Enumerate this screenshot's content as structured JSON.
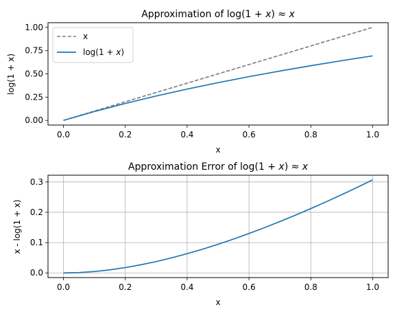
{
  "chart_data": [
    {
      "type": "line",
      "title": "Approximation of log(1 + x) ≈ x",
      "xlabel": "x",
      "ylabel": "log(1 + x)",
      "xlim": [
        -0.05,
        1.05
      ],
      "ylim": [
        -0.05,
        1.05
      ],
      "xticks": [
        0.0,
        0.2,
        0.4,
        0.6,
        0.8,
        1.0
      ],
      "yticks": [
        0.0,
        0.25,
        0.5,
        0.75,
        1.0
      ],
      "xtick_labels": [
        "0.0",
        "0.2",
        "0.4",
        "0.6",
        "0.8",
        "1.0"
      ],
      "ytick_labels": [
        "0.00",
        "0.25",
        "0.50",
        "0.75",
        "1.00"
      ],
      "grid": false,
      "legend": "upper-left",
      "x": [
        0.0,
        0.1,
        0.2,
        0.3,
        0.4,
        0.5,
        0.6,
        0.7,
        0.8,
        0.9,
        1.0
      ],
      "series": [
        {
          "name": "x",
          "color": "#808080",
          "style": "dashed",
          "values": [
            0.0,
            0.1,
            0.2,
            0.3,
            0.4,
            0.5,
            0.6,
            0.7,
            0.8,
            0.9,
            1.0
          ]
        },
        {
          "name": "log(1 + x)",
          "color": "#1f77b4",
          "style": "solid",
          "values": [
            0.0,
            0.0953,
            0.1823,
            0.2624,
            0.3365,
            0.4055,
            0.47,
            0.5306,
            0.5878,
            0.6419,
            0.6931
          ]
        }
      ]
    },
    {
      "type": "line",
      "title": "Approximation Error of log(1 + x) ≈ x",
      "xlabel": "x",
      "ylabel": "x - log(1 + x)",
      "xlim": [
        -0.05,
        1.05
      ],
      "ylim": [
        -0.0153,
        0.3222
      ],
      "xticks": [
        0.0,
        0.2,
        0.4,
        0.6,
        0.8,
        1.0
      ],
      "yticks": [
        0.0,
        0.1,
        0.2,
        0.3
      ],
      "xtick_labels": [
        "0.0",
        "0.2",
        "0.4",
        "0.6",
        "0.8",
        "1.0"
      ],
      "ytick_labels": [
        "0.0",
        "0.1",
        "0.2",
        "0.3"
      ],
      "grid": true,
      "legend": "none",
      "x": [
        0.0,
        0.05,
        0.1,
        0.15,
        0.2,
        0.25,
        0.3,
        0.35,
        0.4,
        0.45,
        0.5,
        0.55,
        0.6,
        0.65,
        0.7,
        0.75,
        0.8,
        0.85,
        0.9,
        0.95,
        1.0
      ],
      "series": [
        {
          "name": "",
          "color": "#1f77b4",
          "style": "solid",
          "values": [
            0.0,
            0.0012,
            0.0047,
            0.0102,
            0.0177,
            0.0269,
            0.0376,
            0.0499,
            0.0635,
            0.0784,
            0.0945,
            0.1117,
            0.13,
            0.1492,
            0.1694,
            0.1904,
            0.2122,
            0.2348,
            0.2581,
            0.2821,
            0.3069
          ]
        }
      ]
    }
  ]
}
